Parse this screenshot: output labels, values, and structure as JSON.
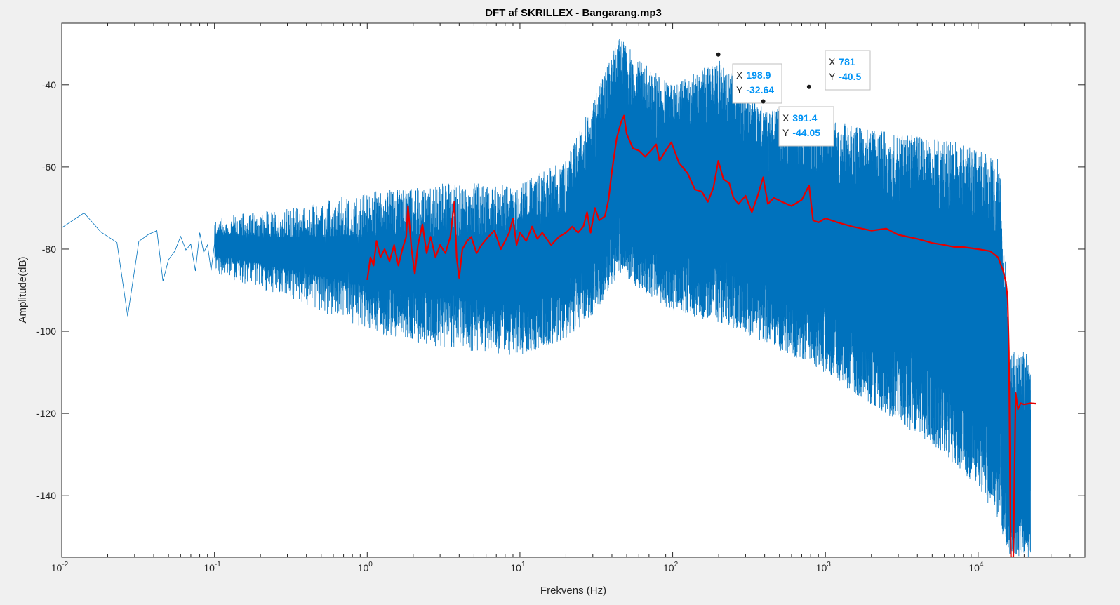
{
  "chart_data": {
    "type": "line",
    "title": "DFT af SKRILLEX - Bangarang.mp3",
    "xlabel": "Frekvens (Hz)",
    "ylabel": "Amplitude(dB)",
    "xscale": "log",
    "xlim": [
      0.01,
      50000
    ],
    "ylim": [
      -155,
      -25
    ],
    "grid": false,
    "x_ticks": [
      {
        "base": "10",
        "exp": "-2",
        "value": 0.01
      },
      {
        "base": "10",
        "exp": "-1",
        "value": 0.1
      },
      {
        "base": "10",
        "exp": "0",
        "value": 1
      },
      {
        "base": "10",
        "exp": "1",
        "value": 10
      },
      {
        "base": "10",
        "exp": "2",
        "value": 100
      },
      {
        "base": "10",
        "exp": "3",
        "value": 1000
      },
      {
        "base": "10",
        "exp": "4",
        "value": 10000
      }
    ],
    "y_ticks": [
      "-40",
      "-60",
      "-80",
      "-100",
      "-120",
      "-140"
    ],
    "series": [
      {
        "color": "#0072bd",
        "style": "dense-spectrum",
        "low_freq_points": [
          [
            0.01,
            -74.8
          ],
          [
            0.014,
            -71.2
          ],
          [
            0.018,
            -75.8
          ],
          [
            0.023,
            -78.4
          ],
          [
            0.027,
            -96.3
          ],
          [
            0.032,
            -78.1
          ],
          [
            0.037,
            -76.4
          ],
          [
            0.042,
            -75.5
          ],
          [
            0.046,
            -87.8
          ],
          [
            0.05,
            -82.6
          ],
          [
            0.055,
            -80.5
          ],
          [
            0.06,
            -76.9
          ],
          [
            0.065,
            -80.2
          ],
          [
            0.07,
            -78.8
          ],
          [
            0.075,
            -85.3
          ],
          [
            0.08,
            -76.0
          ],
          [
            0.085,
            -80.8
          ],
          [
            0.09,
            -79.0
          ],
          [
            0.095,
            -85.2
          ],
          [
            0.1,
            -78.8
          ]
        ],
        "band": [
          [
            0.1,
            -86,
            -72
          ],
          [
            0.3,
            -92,
            -70
          ],
          [
            1,
            -100,
            -66
          ],
          [
            3,
            -104,
            -64
          ],
          [
            10,
            -106,
            -64
          ],
          [
            20,
            -102,
            -58
          ],
          [
            30,
            -96,
            -44
          ],
          [
            45,
            -86,
            -28
          ],
          [
            60,
            -90,
            -34
          ],
          [
            100,
            -95,
            -40
          ],
          [
            200,
            -98,
            -34
          ],
          [
            400,
            -103,
            -46
          ],
          [
            800,
            -108,
            -46
          ],
          [
            1500,
            -115,
            -50
          ],
          [
            3000,
            -122,
            -52
          ],
          [
            6000,
            -130,
            -53
          ],
          [
            10000,
            -138,
            -56
          ],
          [
            14000,
            -148,
            -58
          ],
          [
            16000,
            -155,
            -105
          ],
          [
            22000,
            -155,
            -105
          ]
        ]
      },
      {
        "color": "#e60000",
        "style": "smoothed",
        "points": [
          [
            1,
            -87.5
          ],
          [
            1.05,
            -82
          ],
          [
            1.1,
            -84
          ],
          [
            1.15,
            -78
          ],
          [
            1.22,
            -82
          ],
          [
            1.3,
            -80
          ],
          [
            1.4,
            -83
          ],
          [
            1.5,
            -79
          ],
          [
            1.6,
            -84
          ],
          [
            1.7,
            -80
          ],
          [
            1.8,
            -77
          ],
          [
            1.85,
            -69.5
          ],
          [
            1.95,
            -80
          ],
          [
            2.05,
            -86
          ],
          [
            2.15,
            -79
          ],
          [
            2.3,
            -74
          ],
          [
            2.45,
            -81
          ],
          [
            2.6,
            -77
          ],
          [
            2.8,
            -82
          ],
          [
            3,
            -79
          ],
          [
            3.25,
            -81
          ],
          [
            3.5,
            -77
          ],
          [
            3.72,
            -68.5
          ],
          [
            3.85,
            -82
          ],
          [
            4,
            -87
          ],
          [
            4.2,
            -80
          ],
          [
            4.5,
            -78
          ],
          [
            4.8,
            -77
          ],
          [
            5.2,
            -81
          ],
          [
            5.6,
            -79
          ],
          [
            6.2,
            -77
          ],
          [
            6.8,
            -75.5
          ],
          [
            7.5,
            -80
          ],
          [
            8,
            -78
          ],
          [
            8.5,
            -76
          ],
          [
            9,
            -72.5
          ],
          [
            9.5,
            -79
          ],
          [
            10,
            -76
          ],
          [
            11,
            -78
          ],
          [
            12,
            -74.5
          ],
          [
            13,
            -77.5
          ],
          [
            14,
            -76
          ],
          [
            16,
            -79
          ],
          [
            18,
            -77
          ],
          [
            20,
            -76
          ],
          [
            22,
            -74.5
          ],
          [
            24,
            -76
          ],
          [
            26,
            -74.5
          ],
          [
            27.5,
            -71
          ],
          [
            29,
            -76
          ],
          [
            31,
            -70
          ],
          [
            33,
            -73
          ],
          [
            36,
            -72
          ],
          [
            38,
            -68
          ],
          [
            40,
            -61
          ],
          [
            43,
            -53
          ],
          [
            46,
            -49
          ],
          [
            48,
            -47.5
          ],
          [
            50,
            -52
          ],
          [
            55,
            -55.5
          ],
          [
            60,
            -56
          ],
          [
            66,
            -57.5
          ],
          [
            72,
            -56
          ],
          [
            78,
            -54.5
          ],
          [
            82,
            -58.5
          ],
          [
            90,
            -56
          ],
          [
            98,
            -54
          ],
          [
            110,
            -59
          ],
          [
            125,
            -61.5
          ],
          [
            140,
            -65.5
          ],
          [
            155,
            -66
          ],
          [
            170,
            -68.5
          ],
          [
            185,
            -65
          ],
          [
            199,
            -58.5
          ],
          [
            215,
            -63
          ],
          [
            235,
            -64
          ],
          [
            250,
            -67.5
          ],
          [
            270,
            -69
          ],
          [
            300,
            -67
          ],
          [
            330,
            -71
          ],
          [
            360,
            -67
          ],
          [
            391,
            -62.5
          ],
          [
            420,
            -69
          ],
          [
            460,
            -67.5
          ],
          [
            520,
            -68.5
          ],
          [
            600,
            -69.5
          ],
          [
            700,
            -68
          ],
          [
            781,
            -64.5
          ],
          [
            830,
            -73
          ],
          [
            900,
            -73.5
          ],
          [
            1000,
            -72.5
          ],
          [
            1200,
            -73.5
          ],
          [
            1500,
            -74.5
          ],
          [
            2000,
            -75.5
          ],
          [
            2500,
            -75
          ],
          [
            3000,
            -76.5
          ],
          [
            4000,
            -77.5
          ],
          [
            5000,
            -78.5
          ],
          [
            6000,
            -79
          ],
          [
            7000,
            -79.5
          ],
          [
            8000,
            -79.5
          ],
          [
            10000,
            -80
          ],
          [
            12000,
            -80.5
          ],
          [
            13500,
            -82
          ],
          [
            14500,
            -85
          ],
          [
            15200,
            -88
          ],
          [
            15600,
            -92
          ],
          [
            15900,
            -105
          ],
          [
            16200,
            -140
          ],
          [
            16400,
            -155
          ],
          [
            17000,
            -155
          ],
          [
            17600,
            -115
          ],
          [
            18200,
            -119
          ],
          [
            19000,
            -117.5
          ],
          [
            20000,
            -117.8
          ],
          [
            22000,
            -117.5
          ],
          [
            24000,
            -117.6
          ]
        ]
      }
    ],
    "datatips": [
      {
        "x_label": "X",
        "x_value": "198.9",
        "y_label": "Y",
        "y_value": "-32.64"
      },
      {
        "x_label": "X",
        "x_value": "391.4",
        "y_label": "Y",
        "y_value": "-44.05"
      },
      {
        "x_label": "X",
        "x_value": "781",
        "y_label": "Y",
        "y_value": "-40.5"
      }
    ]
  }
}
